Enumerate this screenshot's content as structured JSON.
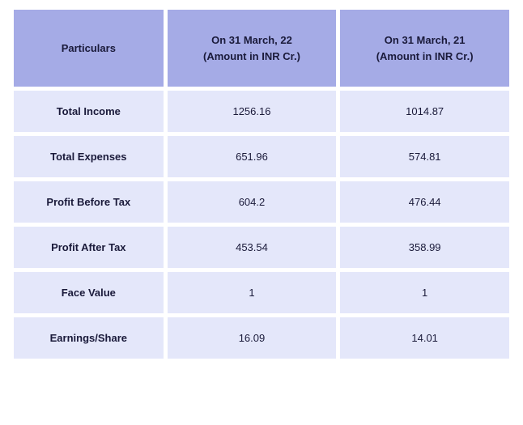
{
  "table": {
    "header_bg": "#a5abe6",
    "row_bg": "#e4e7fa",
    "text_color": "#1a1a3a",
    "columns": [
      {
        "label": "Particulars"
      },
      {
        "label": "On 31 March, 22\n(Amount in INR Cr.)"
      },
      {
        "label": "On 31 March, 21\n(Amount in INR Cr.)"
      }
    ],
    "rows": [
      {
        "label": "Total Income",
        "v1": "1256.16",
        "v2": "1014.87"
      },
      {
        "label": "Total Expenses",
        "v1": "651.96",
        "v2": "574.81"
      },
      {
        "label": "Profit Before Tax",
        "v1": "604.2",
        "v2": "476.44"
      },
      {
        "label": "Profit After Tax",
        "v1": "453.54",
        "v2": "358.99"
      },
      {
        "label": "Face Value",
        "v1": "1",
        "v2": "1"
      },
      {
        "label": "Earnings/Share",
        "v1": "16.09",
        "v2": "14.01"
      }
    ]
  }
}
